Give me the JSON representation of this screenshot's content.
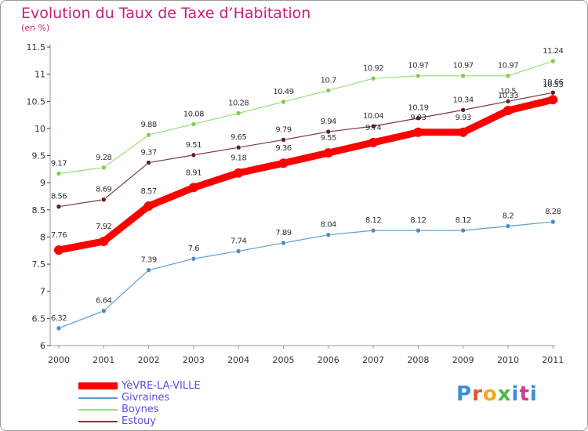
{
  "title": "Evolution du Taux de Taxe d’Habitation",
  "subtitle": "(en %)",
  "logo_text": "Proxiti",
  "chart_data": {
    "type": "line",
    "title": "Evolution du Taux de Taxe d’Habitation",
    "subtitle": "(en %)",
    "categories": [
      "2000",
      "2001",
      "2002",
      "2003",
      "2004",
      "2005",
      "2006",
      "2007",
      "2008",
      "2009",
      "2010",
      "2011"
    ],
    "ylim": [
      6,
      11.5
    ],
    "yticks": [
      "6",
      "6.5",
      "7",
      "7.5",
      "8",
      "8.5",
      "9",
      "9.5",
      "10",
      "10.5",
      "11",
      "11.5"
    ],
    "grid": false,
    "legend_position": "bottom-left",
    "series": [
      {
        "name": "Givraines",
        "color": "#5b9fd0",
        "marker_color": "#4a8cc6",
        "width": 1.2,
        "radius": 3,
        "values": [
          6.32,
          6.64,
          7.39,
          7.6,
          7.74,
          7.89,
          8.04,
          8.12,
          8.12,
          8.12,
          8.2,
          8.28
        ],
        "labels": [
          "6.32",
          "6.64",
          "7.39",
          "7.6",
          "7.74",
          "7.89",
          "8.04",
          "8.12",
          "8.12",
          "8.12",
          "8.2",
          "8.28"
        ]
      },
      {
        "name": "Boynes",
        "color": "#9ae07a",
        "marker_color": "#7fcf4e",
        "width": 1.2,
        "radius": 3,
        "values": [
          9.17,
          9.28,
          9.88,
          10.08,
          10.28,
          10.49,
          10.7,
          10.92,
          10.97,
          10.97,
          10.97,
          11.24
        ],
        "labels": [
          "9.17",
          "9.28",
          "9.88",
          "10.08",
          "10.28",
          "10.49",
          "10.7",
          "10.92",
          "10.97",
          "10.97",
          "10.97",
          "11.24"
        ]
      },
      {
        "name": "Estouy",
        "color": "#7a3a3a",
        "marker_color": "#5e1f1f",
        "width": 1.2,
        "radius": 3,
        "values": [
          8.56,
          8.69,
          9.37,
          9.51,
          9.65,
          9.79,
          9.94,
          10.04,
          10.19,
          10.34,
          10.5,
          10.66
        ],
        "labels": [
          "8.56",
          "8.69",
          "9.37",
          "9.51",
          "9.65",
          "9.79",
          "9.94",
          "10.04",
          "10.19",
          "10.34",
          "10.5",
          "10.66"
        ]
      },
      {
        "name": "YèVRE-LA-VILLE",
        "color": "#ff0000",
        "marker_color": "#ff0000",
        "width": 9,
        "radius": 6,
        "values": [
          7.76,
          7.92,
          8.57,
          8.91,
          9.18,
          9.36,
          9.55,
          9.74,
          9.93,
          9.93,
          10.33,
          10.53
        ],
        "labels": [
          "7.76",
          "7.92",
          "8.57",
          "8.91",
          "9.18",
          "9.36",
          "9.55",
          "9.74",
          "9.93",
          "9.93",
          "10.33",
          "10.53"
        ]
      }
    ],
    "legend": [
      {
        "name": "YèVRE-LA-VILLE",
        "color": "#ff0000",
        "thick": true
      },
      {
        "name": "Givraines",
        "color": "#5b9fd0",
        "thick": false
      },
      {
        "name": "Boynes",
        "color": "#9ae07a",
        "thick": false
      },
      {
        "name": "Estouy",
        "color": "#7a3a3a",
        "thick": false
      }
    ]
  }
}
